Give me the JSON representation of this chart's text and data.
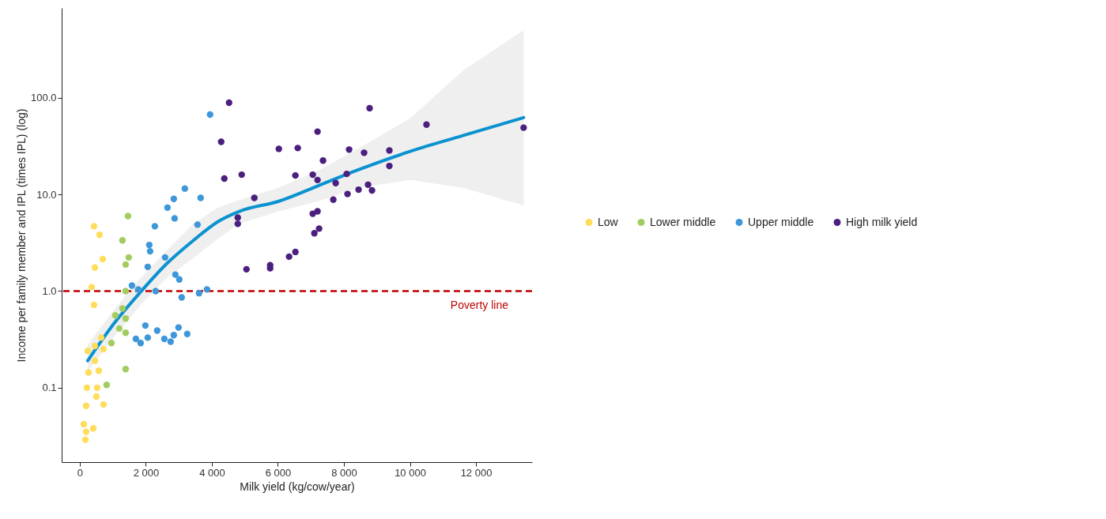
{
  "chart_data": {
    "type": "scatter",
    "xlabel": "Milk yield (kg/cow/year)",
    "ylabel": "Income per family member and IPL (times IPL) (log)",
    "log": "y",
    "xlim": [
      -550,
      13700
    ],
    "ylim": [
      0.017,
      850
    ],
    "xticks": [
      0,
      {
        "value": 2000,
        "label": "2 000"
      },
      {
        "value": 4000,
        "label": "4 000"
      },
      {
        "value": 6000,
        "label": "6 000"
      },
      {
        "value": 8000,
        "label": "8 000"
      },
      {
        "value": 10000,
        "label": "10 000"
      },
      {
        "value": 12000,
        "label": "12 000"
      }
    ],
    "yticks": [
      {
        "value": 0.1,
        "label": "0.1"
      },
      {
        "value": 1,
        "label": "1.0"
      },
      {
        "value": 10,
        "label": "10.0"
      },
      {
        "value": 100,
        "label": "100.0"
      }
    ],
    "grid": false,
    "legend": "right",
    "marker": "circle",
    "ref_lines": [
      {
        "axis": "y",
        "value": 1,
        "label": "Poverty line",
        "color": "#c00000",
        "line_style": "dashed"
      }
    ],
    "series": [
      {
        "name": "Low",
        "color": "#fedd5a",
        "x": [
          431,
          598,
          694,
          455,
          359,
          431,
          646,
          455,
          239,
          718,
          455,
          263,
          574,
          215,
          526,
          502,
          718,
          191,
          120,
          407,
          191,
          167
        ],
        "values": [
          4.69,
          3.82,
          2.14,
          1.75,
          1.1,
          0.72,
          0.33,
          0.27,
          0.24,
          0.25,
          0.19,
          0.144,
          0.15,
          0.1,
          0.1,
          0.081,
          0.067,
          0.065,
          0.042,
          0.038,
          0.035,
          0.029
        ]
      },
      {
        "name": "Lower middle",
        "color": "#a2cc5f",
        "x": [
          1459,
          1292,
          1483,
          1388,
          1388,
          1292,
          1077,
          1388,
          1196,
          1388,
          957,
          813,
          1388
        ],
        "values": [
          5.97,
          3.35,
          2.23,
          1.88,
          1.0,
          0.66,
          0.56,
          0.52,
          0.41,
          0.37,
          0.29,
          0.107,
          0.156
        ]
      },
      {
        "name": "Upper middle",
        "color": "#3d97d9",
        "x": [
          3947,
          3182,
          2847,
          3660,
          2656,
          2871,
          2273,
          3565,
          2105,
          2129,
          2584,
          2057,
          2895,
          3014,
          1579,
          1770,
          2297,
          3086,
          3612,
          3852,
          1986,
          2990,
          2344,
          1699,
          1842,
          2057,
          2560,
          2751,
          2847,
          3254
        ],
        "values": [
          67,
          11.5,
          9.0,
          9.2,
          7.3,
          5.65,
          4.69,
          4.87,
          3.0,
          2.58,
          2.23,
          1.78,
          1.48,
          1.32,
          1.14,
          1.04,
          1.0,
          0.86,
          0.95,
          1.04,
          0.44,
          0.42,
          0.39,
          0.32,
          0.29,
          0.33,
          0.32,
          0.3,
          0.35,
          0.36
        ]
      },
      {
        "name": "High milk yield",
        "color": "#4b1f7e",
        "x": [
          4522,
          4282,
          4378,
          4904,
          5287,
          4785,
          4785,
          5048,
          5766,
          5766,
          6340,
          6531,
          7105,
          7249,
          7057,
          7201,
          6029,
          6603,
          6531,
          7057,
          7201,
          7201,
          7368,
          7679,
          7751,
          8086,
          8158,
          8110,
          8445,
          8612,
          8780,
          8732,
          8852,
          9378,
          9378,
          10502,
          13445
        ],
        "values": [
          88.8,
          35,
          14.6,
          16.0,
          9.2,
          5.75,
          4.96,
          1.68,
          1.85,
          1.72,
          2.27,
          2.54,
          3.97,
          4.43,
          6.31,
          6.68,
          29.6,
          30.2,
          15.7,
          16.0,
          14.1,
          44.6,
          22.4,
          8.83,
          13.1,
          16.3,
          29.1,
          10.1,
          11.2,
          27.0,
          78,
          12.6,
          11.0,
          28.5,
          19.7,
          52.7,
          49
        ]
      },
      {
        "type": "line",
        "marker": "none",
        "color": "#0a92d0",
        "x": [
          239,
          1053,
          1842,
          2632,
          3445,
          4187,
          4833,
          6029,
          7225,
          8421,
          10024,
          11603,
          13445
        ],
        "values": [
          0.19,
          0.47,
          0.98,
          1.92,
          3.35,
          5.24,
          6.68,
          8.5,
          12.3,
          17.9,
          28,
          40.6,
          62.3
        ],
        "lower": [
          0.147,
          0.34,
          0.72,
          1.37,
          2.2,
          3.5,
          5.0,
          6.7,
          8.5,
          11.7,
          14.1,
          11.7,
          7.7
        ],
        "upper": [
          0.28,
          0.65,
          1.37,
          2.63,
          5.0,
          7.3,
          8.8,
          11.7,
          17.6,
          29.6,
          62,
          190,
          500
        ]
      }
    ]
  }
}
